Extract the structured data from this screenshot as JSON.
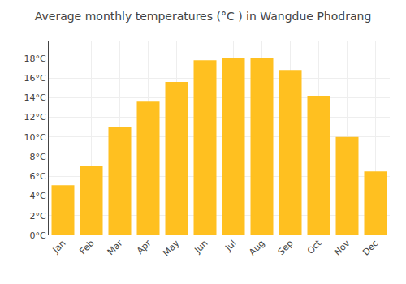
{
  "chart_data": {
    "type": "bar",
    "title": "Average monthly temperatures (°C ) in Wangdue Phodrang",
    "categories": [
      "Jan",
      "Feb",
      "Mar",
      "Apr",
      "May",
      "Jun",
      "Jul",
      "Aug",
      "Sep",
      "Oct",
      "Nov",
      "Dec"
    ],
    "values": [
      5.1,
      7.1,
      11.0,
      13.6,
      15.6,
      17.8,
      18.0,
      18.0,
      16.8,
      14.2,
      10.0,
      6.5
    ],
    "color": "#FFC020",
    "ylim": [
      0,
      19.8
    ],
    "yticks": [
      {
        "value": 0,
        "label": "0°C"
      },
      {
        "value": 2,
        "label": "2°C"
      },
      {
        "value": 4,
        "label": "4°C"
      },
      {
        "value": 6,
        "label": "6°C"
      },
      {
        "value": 8,
        "label": "8°C"
      },
      {
        "value": 10,
        "label": "10°C"
      },
      {
        "value": 12,
        "label": "12°C"
      },
      {
        "value": 14,
        "label": "14°C"
      },
      {
        "value": 16,
        "label": "16°C"
      },
      {
        "value": 18,
        "label": "18°C"
      }
    ],
    "grid": true
  }
}
